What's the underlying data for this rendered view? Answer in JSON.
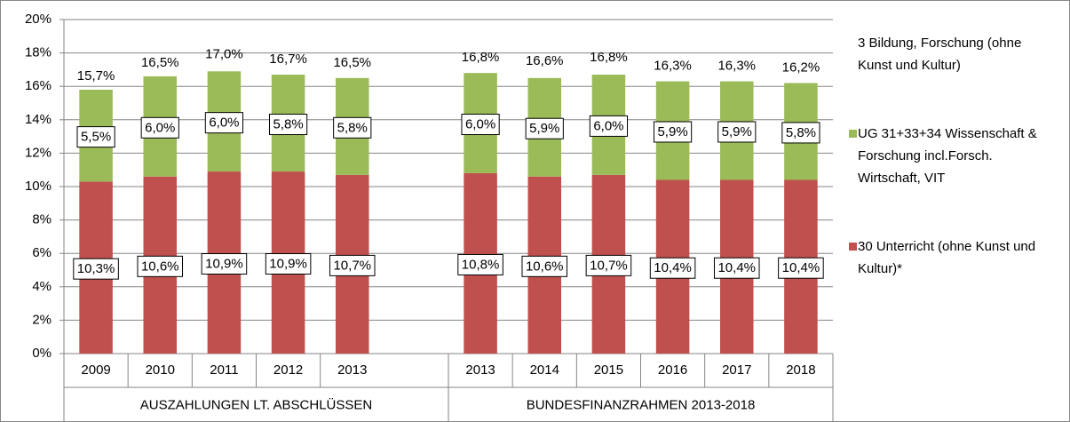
{
  "chart_data": {
    "type": "stacked-bar",
    "categories": [
      "2009",
      "2010",
      "2011",
      "2012",
      "2013",
      null,
      "2013",
      "2014",
      "2015",
      "2016",
      "2017",
      "2018"
    ],
    "groups": [
      "AUSZAHLUNGEN LT. ABSCHLÜSSEN",
      "BUNDESFINANZRAHMEN 2013-2018"
    ],
    "series": [
      {
        "name": "30 Unterricht (ohne Kunst und Kultur)*",
        "color": "#c0504d",
        "values": [
          10.3,
          10.6,
          10.9,
          10.9,
          10.7,
          null,
          10.8,
          10.6,
          10.7,
          10.4,
          10.4,
          10.4
        ],
        "value_labels": [
          "10,3%",
          "10,6%",
          "10,9%",
          "10,9%",
          "10,7%",
          null,
          "10,8%",
          "10,6%",
          "10,7%",
          "10,4%",
          "10,4%",
          "10,4%"
        ]
      },
      {
        "name": "UG 31+33+34 Wissenschaft & Forschung incl.Forsch. Wirtschaft, VIT",
        "color": "#9bbb59",
        "values": [
          5.5,
          6.0,
          6.0,
          5.8,
          5.8,
          null,
          6.0,
          5.9,
          6.0,
          5.9,
          5.9,
          5.8
        ],
        "value_labels": [
          "5,5%",
          "6,0%",
          "6,0%",
          "5,8%",
          "5,8%",
          null,
          "6,0%",
          "5,9%",
          "6,0%",
          "5,9%",
          "5,9%",
          "5,8%"
        ]
      }
    ],
    "totals": {
      "name": "3 Bildung, Forschung (ohne Kunst und Kultur)",
      "values": [
        15.7,
        16.5,
        17.0,
        16.7,
        16.5,
        null,
        16.8,
        16.6,
        16.8,
        16.3,
        16.3,
        16.2
      ],
      "value_labels": [
        "15,7%",
        "16,5%",
        "17,0%",
        "16,7%",
        "16,5%",
        null,
        "16,8%",
        "16,6%",
        "16,8%",
        "16,3%",
        "16,3%",
        "16,2%"
      ]
    },
    "ylim": [
      0,
      20
    ],
    "yticks": [
      {
        "value": 0,
        "label": "0%"
      },
      {
        "value": 2,
        "label": "2%"
      },
      {
        "value": 4,
        "label": "4%"
      },
      {
        "value": 6,
        "label": "6%"
      },
      {
        "value": 8,
        "label": "8%"
      },
      {
        "value": 10,
        "label": "10%"
      },
      {
        "value": 12,
        "label": "12%"
      },
      {
        "value": 14,
        "label": "14%"
      },
      {
        "value": 16,
        "label": "16%"
      },
      {
        "value": 18,
        "label": "18%"
      },
      {
        "value": 20,
        "label": "20%"
      }
    ],
    "grid": true
  }
}
